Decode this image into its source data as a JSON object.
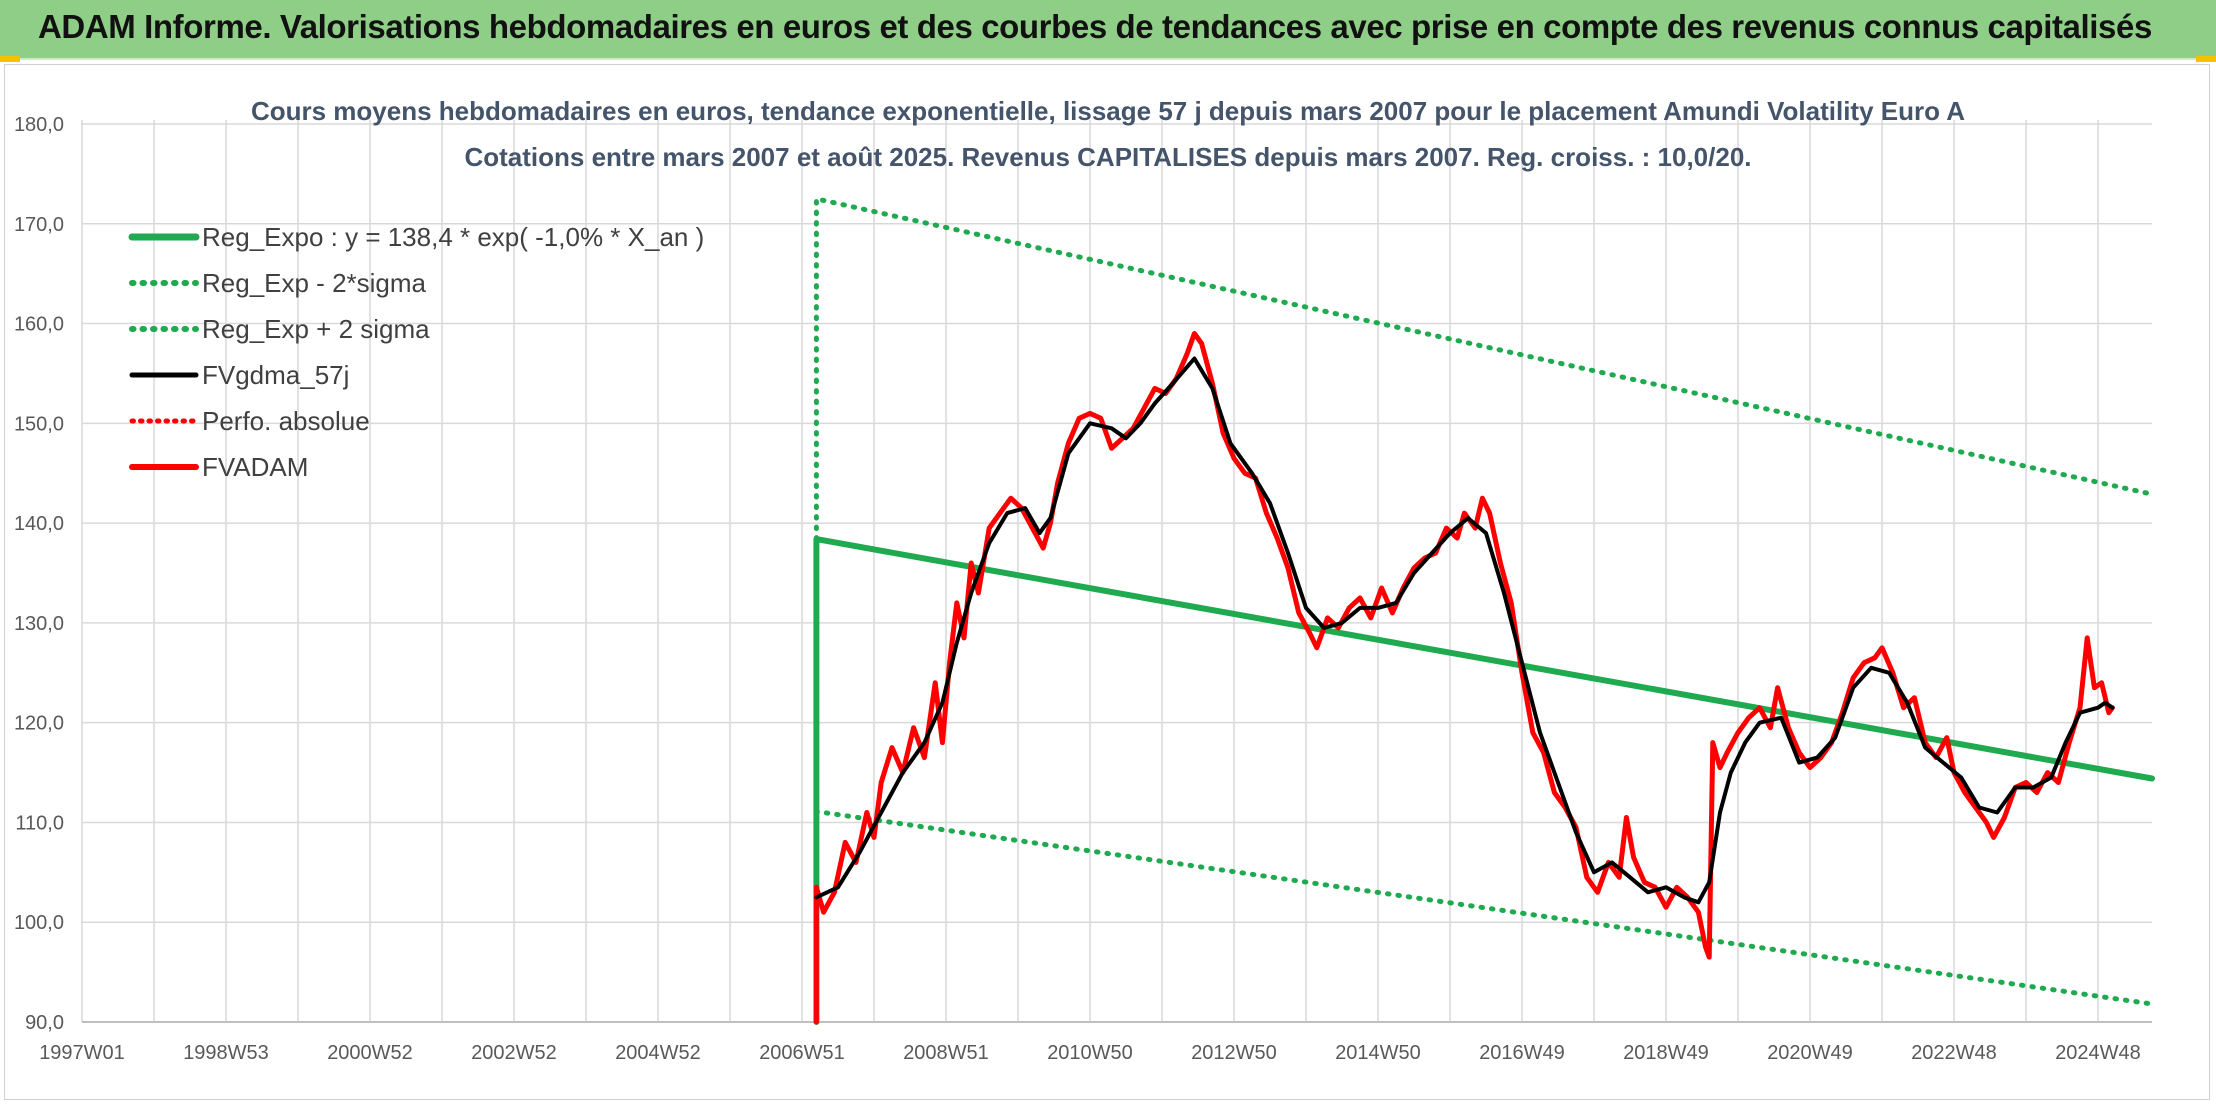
{
  "header": {
    "banner_title": "ADAM Informe. Valorisations hebdomadaires en euros et des courbes de tendances avec prise en compte des revenus connus capitalisés"
  },
  "colors": {
    "banner": "#8fce86",
    "reg_expo": "#1faa50",
    "fvgdma": "#000000",
    "fvadam": "#ff0000",
    "perfo": "#ff0000",
    "gridline": "#d9d9d9",
    "title_text": "#44546a"
  },
  "chart_data": {
    "type": "line",
    "title_line1": "Cours moyens hebdomadaires en euros, tendance exponentielle, lissage 57 j depuis mars 2007 pour le placement Amundi Volatility Euro A",
    "title_line2": "Cotations entre mars 2007 et août 2025. Revenus CAPITALISES depuis mars 2007. Reg. croiss. : 10,0/20.",
    "xlabel": "",
    "ylabel": "",
    "ylim": [
      90,
      180
    ],
    "xlim": [
      1997.0,
      2025.75
    ],
    "grid": true,
    "legend_position": "top-left",
    "y_ticks": [
      "90,0",
      "100,0",
      "110,0",
      "120,0",
      "130,0",
      "140,0",
      "150,0",
      "160,0",
      "170,0",
      "180,0"
    ],
    "x_ticks": [
      {
        "label": "1997W01",
        "x": 1997.0
      },
      {
        "label": "1998W53",
        "x": 1999.0
      },
      {
        "label": "2000W52",
        "x": 2001.0
      },
      {
        "label": "2002W52",
        "x": 2003.0
      },
      {
        "label": "2004W52",
        "x": 2005.0
      },
      {
        "label": "2006W51",
        "x": 2007.0
      },
      {
        "label": "2008W51",
        "x": 2009.0
      },
      {
        "label": "2010W50",
        "x": 2011.0
      },
      {
        "label": "2012W50",
        "x": 2013.0
      },
      {
        "label": "2014W50",
        "x": 2015.0
      },
      {
        "label": "2016W49",
        "x": 2017.0
      },
      {
        "label": "2018W49",
        "x": 2019.0
      },
      {
        "label": "2020W49",
        "x": 2021.0
      },
      {
        "label": "2022W48",
        "x": 2023.0
      },
      {
        "label": "2024W48",
        "x": 2025.0
      }
    ],
    "series": [
      {
        "name": "Reg_Expo : y = 138,4 * exp( -1,0% *  X_an )",
        "key": "reg_expo",
        "style": "solid",
        "points": [
          [
            2007.2,
            90.0
          ],
          [
            2007.2,
            138.4
          ],
          [
            2025.75,
            114.4
          ]
        ]
      },
      {
        "name": "Reg_Exp - 2*sigma",
        "key": "reg_minus",
        "style": "dotted",
        "points": [
          [
            2007.2,
            90.0
          ],
          [
            2007.2,
            111.1
          ],
          [
            2025.75,
            91.8
          ]
        ]
      },
      {
        "name": "Reg_Exp + 2 sigma",
        "key": "reg_plus",
        "style": "dotted",
        "points": [
          [
            2007.2,
            138.4
          ],
          [
            2007.2,
            172.5
          ],
          [
            2025.75,
            142.9
          ]
        ]
      },
      {
        "name": "FVgdma_57j",
        "key": "fvgdma",
        "style": "solid",
        "points": [
          [
            2007.2,
            102.5
          ],
          [
            2007.5,
            103.5
          ],
          [
            2007.8,
            107.0
          ],
          [
            2008.1,
            111.0
          ],
          [
            2008.4,
            115.0
          ],
          [
            2008.7,
            118.0
          ],
          [
            2008.95,
            122.0
          ],
          [
            2009.15,
            128.0
          ],
          [
            2009.35,
            133.0
          ],
          [
            2009.6,
            138.0
          ],
          [
            2009.85,
            141.0
          ],
          [
            2010.1,
            141.5
          ],
          [
            2010.3,
            139.0
          ],
          [
            2010.45,
            140.5
          ],
          [
            2010.7,
            147.0
          ],
          [
            2011.0,
            150.0
          ],
          [
            2011.3,
            149.5
          ],
          [
            2011.5,
            148.5
          ],
          [
            2011.7,
            150.0
          ],
          [
            2011.9,
            152.0
          ],
          [
            2012.15,
            154.0
          ],
          [
            2012.45,
            156.5
          ],
          [
            2012.7,
            153.5
          ],
          [
            2012.95,
            148.0
          ],
          [
            2013.25,
            145.0
          ],
          [
            2013.5,
            142.0
          ],
          [
            2013.75,
            137.0
          ],
          [
            2014.0,
            131.5
          ],
          [
            2014.25,
            129.5
          ],
          [
            2014.5,
            130.0
          ],
          [
            2014.75,
            131.5
          ],
          [
            2015.0,
            131.5
          ],
          [
            2015.25,
            132.0
          ],
          [
            2015.5,
            135.0
          ],
          [
            2015.75,
            137.0
          ],
          [
            2016.0,
            139.0
          ],
          [
            2016.25,
            140.5
          ],
          [
            2016.5,
            139.0
          ],
          [
            2016.75,
            133.0
          ],
          [
            2017.0,
            126.0
          ],
          [
            2017.25,
            119.0
          ],
          [
            2017.5,
            114.0
          ],
          [
            2017.75,
            109.0
          ],
          [
            2018.0,
            105.0
          ],
          [
            2018.25,
            106.0
          ],
          [
            2018.5,
            104.5
          ],
          [
            2018.75,
            103.0
          ],
          [
            2019.0,
            103.5
          ],
          [
            2019.25,
            102.5
          ],
          [
            2019.45,
            102.0
          ],
          [
            2019.6,
            104.0
          ],
          [
            2019.75,
            111.0
          ],
          [
            2019.9,
            115.0
          ],
          [
            2020.1,
            118.0
          ],
          [
            2020.3,
            120.0
          ],
          [
            2020.6,
            120.5
          ],
          [
            2020.85,
            116.0
          ],
          [
            2021.1,
            116.5
          ],
          [
            2021.35,
            118.5
          ],
          [
            2021.6,
            123.5
          ],
          [
            2021.85,
            125.5
          ],
          [
            2022.1,
            125.0
          ],
          [
            2022.35,
            122.0
          ],
          [
            2022.6,
            117.5
          ],
          [
            2022.85,
            116.0
          ],
          [
            2023.1,
            114.5
          ],
          [
            2023.35,
            111.5
          ],
          [
            2023.6,
            111.0
          ],
          [
            2023.85,
            113.5
          ],
          [
            2024.1,
            113.5
          ],
          [
            2024.35,
            114.5
          ],
          [
            2024.55,
            118.0
          ],
          [
            2024.75,
            121.0
          ],
          [
            2025.0,
            121.5
          ],
          [
            2025.1,
            122.0
          ],
          [
            2025.2,
            121.5
          ]
        ]
      },
      {
        "name": "Perfo. absolue",
        "key": "perfo",
        "style": "dotted",
        "points": []
      },
      {
        "name": "FVADAM",
        "key": "fvadam",
        "style": "solid",
        "points": [
          [
            2007.2,
            90.0
          ],
          [
            2007.2,
            103.5
          ],
          [
            2007.3,
            101.0
          ],
          [
            2007.45,
            103.0
          ],
          [
            2007.6,
            108.0
          ],
          [
            2007.75,
            106.0
          ],
          [
            2007.9,
            111.0
          ],
          [
            2008.0,
            108.5
          ],
          [
            2008.1,
            114.0
          ],
          [
            2008.25,
            117.5
          ],
          [
            2008.4,
            115.0
          ],
          [
            2008.55,
            119.5
          ],
          [
            2008.7,
            116.5
          ],
          [
            2008.85,
            124.0
          ],
          [
            2008.95,
            118.0
          ],
          [
            2009.05,
            126.0
          ],
          [
            2009.15,
            132.0
          ],
          [
            2009.25,
            128.5
          ],
          [
            2009.35,
            136.0
          ],
          [
            2009.45,
            133.0
          ],
          [
            2009.6,
            139.5
          ],
          [
            2009.75,
            141.0
          ],
          [
            2009.9,
            142.5
          ],
          [
            2010.05,
            141.5
          ],
          [
            2010.2,
            139.5
          ],
          [
            2010.35,
            137.5
          ],
          [
            2010.45,
            140.0
          ],
          [
            2010.55,
            144.0
          ],
          [
            2010.7,
            148.0
          ],
          [
            2010.85,
            150.5
          ],
          [
            2011.0,
            151.0
          ],
          [
            2011.15,
            150.5
          ],
          [
            2011.3,
            147.5
          ],
          [
            2011.45,
            148.5
          ],
          [
            2011.6,
            149.5
          ],
          [
            2011.75,
            151.5
          ],
          [
            2011.9,
            153.5
          ],
          [
            2012.05,
            153.0
          ],
          [
            2012.2,
            154.5
          ],
          [
            2012.35,
            157.0
          ],
          [
            2012.45,
            159.0
          ],
          [
            2012.55,
            158.0
          ],
          [
            2012.7,
            154.0
          ],
          [
            2012.85,
            149.0
          ],
          [
            2013.0,
            146.5
          ],
          [
            2013.15,
            145.0
          ],
          [
            2013.3,
            144.5
          ],
          [
            2013.45,
            141.0
          ],
          [
            2013.6,
            138.5
          ],
          [
            2013.75,
            135.5
          ],
          [
            2013.9,
            131.0
          ],
          [
            2014.05,
            129.0
          ],
          [
            2014.15,
            127.5
          ],
          [
            2014.3,
            130.5
          ],
          [
            2014.45,
            129.5
          ],
          [
            2014.6,
            131.5
          ],
          [
            2014.75,
            132.5
          ],
          [
            2014.9,
            130.5
          ],
          [
            2015.05,
            133.5
          ],
          [
            2015.2,
            131.0
          ],
          [
            2015.35,
            133.5
          ],
          [
            2015.5,
            135.5
          ],
          [
            2015.65,
            136.5
          ],
          [
            2015.8,
            137.0
          ],
          [
            2015.95,
            139.5
          ],
          [
            2016.1,
            138.5
          ],
          [
            2016.2,
            141.0
          ],
          [
            2016.35,
            139.5
          ],
          [
            2016.45,
            142.5
          ],
          [
            2016.55,
            141.0
          ],
          [
            2016.7,
            136.0
          ],
          [
            2016.85,
            132.0
          ],
          [
            2017.0,
            125.0
          ],
          [
            2017.15,
            119.0
          ],
          [
            2017.3,
            117.0
          ],
          [
            2017.45,
            113.0
          ],
          [
            2017.6,
            111.5
          ],
          [
            2017.75,
            109.5
          ],
          [
            2017.9,
            104.5
          ],
          [
            2018.05,
            103.0
          ],
          [
            2018.2,
            106.0
          ],
          [
            2018.35,
            104.5
          ],
          [
            2018.45,
            110.5
          ],
          [
            2018.55,
            106.5
          ],
          [
            2018.7,
            104.0
          ],
          [
            2018.85,
            103.5
          ],
          [
            2019.0,
            101.5
          ],
          [
            2019.15,
            103.5
          ],
          [
            2019.3,
            102.5
          ],
          [
            2019.45,
            101.0
          ],
          [
            2019.55,
            97.5
          ],
          [
            2019.6,
            96.5
          ],
          [
            2019.65,
            118.0
          ],
          [
            2019.75,
            115.5
          ],
          [
            2019.85,
            117.0
          ],
          [
            2020.0,
            119.0
          ],
          [
            2020.15,
            120.5
          ],
          [
            2020.3,
            121.5
          ],
          [
            2020.45,
            119.5
          ],
          [
            2020.55,
            123.5
          ],
          [
            2020.7,
            119.5
          ],
          [
            2020.85,
            117.0
          ],
          [
            2021.0,
            115.5
          ],
          [
            2021.15,
            116.5
          ],
          [
            2021.3,
            118.0
          ],
          [
            2021.45,
            121.0
          ],
          [
            2021.6,
            124.5
          ],
          [
            2021.75,
            126.0
          ],
          [
            2021.9,
            126.5
          ],
          [
            2022.0,
            127.5
          ],
          [
            2022.15,
            125.0
          ],
          [
            2022.3,
            121.5
          ],
          [
            2022.45,
            122.5
          ],
          [
            2022.6,
            118.0
          ],
          [
            2022.75,
            116.5
          ],
          [
            2022.9,
            118.5
          ],
          [
            2023.0,
            115.0
          ],
          [
            2023.15,
            113.0
          ],
          [
            2023.3,
            111.5
          ],
          [
            2023.45,
            110.0
          ],
          [
            2023.55,
            108.5
          ],
          [
            2023.7,
            110.5
          ],
          [
            2023.85,
            113.5
          ],
          [
            2024.0,
            114.0
          ],
          [
            2024.15,
            113.0
          ],
          [
            2024.3,
            115.0
          ],
          [
            2024.45,
            114.0
          ],
          [
            2024.6,
            118.0
          ],
          [
            2024.75,
            121.5
          ],
          [
            2024.85,
            128.5
          ],
          [
            2024.95,
            123.5
          ],
          [
            2025.05,
            124.0
          ],
          [
            2025.15,
            121.0
          ],
          [
            2025.2,
            121.5
          ]
        ]
      }
    ]
  }
}
